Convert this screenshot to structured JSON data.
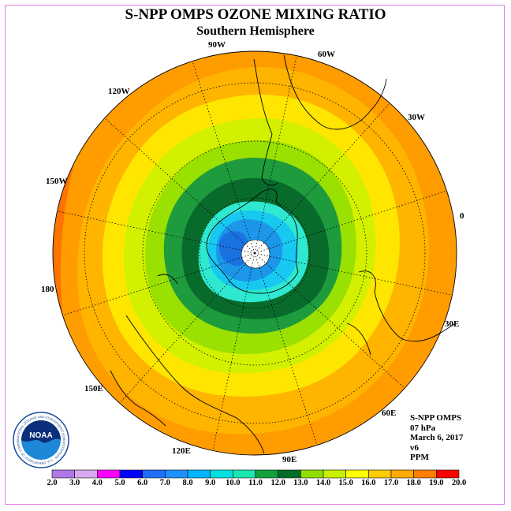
{
  "title": "S-NPP OMPS OZONE MIXING RATIO",
  "subtitle": "Southern Hemisphere",
  "longitude_labels": {
    "lon_90w": "90W",
    "lon_60w": "60W",
    "lon_120w": "120W",
    "lon_30w": "30W",
    "lon_150w": "150W",
    "lon_0": "0",
    "lon_180": "180",
    "lon_30e": "30E",
    "lon_150e": "150E",
    "lon_60e": "60E",
    "lon_120e": "120E",
    "lon_90e": "90E"
  },
  "info": {
    "instrument": "S-NPP OMPS",
    "level": "07 hPa",
    "date": "March 6, 2017",
    "version": "v6",
    "units": "PPM"
  },
  "logo": {
    "text": "NOAA",
    "ring_text": "NATIONAL OCEANIC AND ATMOSPHERIC ADMINISTRATION · U.S. DEPARTMENT OF COMMERCE"
  },
  "colorbar": {
    "labels": [
      "2.0",
      "3.0",
      "4.0",
      "5.0",
      "6.0",
      "7.0",
      "8.0",
      "9.0",
      "10.0",
      "11.0",
      "12.0",
      "13.0",
      "14.0",
      "15.0",
      "16.0",
      "17.0",
      "18.0",
      "19.0",
      "20.0"
    ],
    "colors": [
      "#b077e8",
      "#d8a8f0",
      "#ff00ff",
      "#0000ff",
      "#1f6fff",
      "#1e90ff",
      "#00b4ff",
      "#00e0e0",
      "#19e6b0",
      "#11a03c",
      "#006e28",
      "#8ede00",
      "#c8f000",
      "#ffff00",
      "#ffcc00",
      "#ffaa00",
      "#ff7e00",
      "#ff0000",
      "#7a4a28"
    ]
  },
  "map_colors": {
    "outer": "#ff9c00",
    "ring_orange": "#ffb400",
    "ring_yellow": "#ffe600",
    "ring_ylgreen": "#d2f000",
    "ring_lime": "#9ae000",
    "ring_green": "#1e9b3c",
    "ring_dkgreen": "#086b2c",
    "core_aqua": "#2ee8d0",
    "core_cyan": "#17c8f0",
    "core_blue": "#1c96e8",
    "core_dkblue": "#1a72e0",
    "pole": "#ffffff",
    "edge_red": "#ff7300"
  }
}
